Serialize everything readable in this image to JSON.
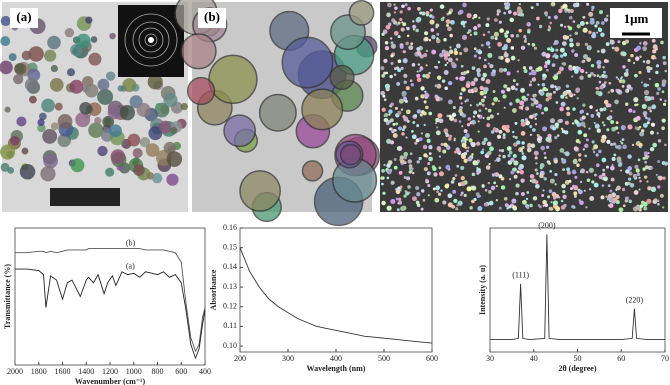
{
  "panels": [
    {
      "label": "(a)"
    },
    {
      "label": "(b)"
    },
    {
      "scale_label": "1μm"
    }
  ],
  "chart_data": [
    {
      "type": "line",
      "xlabel": "Wavenumber (cm⁻¹)",
      "ylabel": "Transmittance (%)",
      "xlim": [
        2000,
        400
      ],
      "xticks": [
        2000,
        1800,
        1600,
        1400,
        1200,
        1000,
        800,
        600,
        400
      ],
      "ylim": [
        0,
        100
      ],
      "x": [
        2000,
        1900,
        1800,
        1760,
        1740,
        1700,
        1650,
        1600,
        1560,
        1520,
        1480,
        1450,
        1400,
        1380,
        1340,
        1300,
        1250,
        1220,
        1180,
        1150,
        1100,
        1050,
        1000,
        950,
        900,
        850,
        800,
        750,
        700,
        650,
        600,
        560,
        520,
        480,
        450,
        420,
        400
      ],
      "series": [
        {
          "name": "(b)",
          "color": "#555",
          "values": [
            82,
            82,
            83,
            83,
            82,
            83,
            82,
            83,
            84,
            84,
            84,
            84,
            84,
            85,
            85,
            85,
            85,
            85,
            85,
            85,
            85,
            85,
            85,
            85,
            84,
            84,
            84,
            84,
            83,
            82,
            75,
            45,
            20,
            10,
            15,
            35,
            42
          ]
        },
        {
          "name": "(a)",
          "color": "#222",
          "values": [
            70,
            70,
            69,
            66,
            42,
            65,
            62,
            48,
            60,
            62,
            55,
            50,
            62,
            64,
            60,
            66,
            52,
            60,
            65,
            58,
            68,
            66,
            67,
            64,
            68,
            67,
            66,
            68,
            64,
            66,
            60,
            40,
            15,
            5,
            12,
            30,
            40
          ]
        }
      ]
    },
    {
      "type": "line",
      "xlabel": "Wavelength (nm)",
      "ylabel": "Absorbance",
      "xlim": [
        200,
        600
      ],
      "xticks": [
        200,
        300,
        400,
        500,
        600
      ],
      "ylim": [
        0.097,
        0.16
      ],
      "yticks": [
        {
          "value": 0.1,
          "label": "0.10"
        },
        0.11,
        0.12,
        0.13,
        0.14,
        0.15,
        {
          "value": 0.16,
          "label": "0.16"
        }
      ],
      "x": [
        200,
        220,
        240,
        260,
        280,
        300,
        320,
        340,
        360,
        380,
        400,
        420,
        440,
        460,
        480,
        500,
        520,
        540,
        560,
        580,
        600
      ],
      "series": [
        {
          "name": null,
          "color": "#333",
          "values": [
            0.15,
            0.138,
            0.13,
            0.124,
            0.12,
            0.117,
            0.114,
            0.112,
            0.11,
            0.109,
            0.108,
            0.107,
            0.106,
            0.105,
            0.1045,
            0.104,
            0.1035,
            0.103,
            0.1025,
            0.102,
            0.1015
          ]
        }
      ]
    },
    {
      "type": "line",
      "xlabel": "2θ (degree)",
      "ylabel": "Intensity (a. u)",
      "xlim": [
        30,
        70
      ],
      "xticks": [
        30,
        40,
        50,
        60,
        70
      ],
      "ylim": [
        0,
        100
      ],
      "x": [
        30,
        35,
        36.5,
        37,
        37.5,
        39,
        42.5,
        43,
        43.5,
        46,
        50,
        55,
        60,
        62.5,
        63,
        63.5,
        66,
        70
      ],
      "series": [
        {
          "name": null,
          "color": "#333",
          "values": [
            10,
            10,
            11,
            55,
            11,
            10,
            11,
            95,
            11,
            10,
            10,
            10,
            10,
            11,
            35,
            11,
            10,
            10
          ]
        }
      ],
      "annotations": [
        {
          "text": "(111)",
          "x": 37,
          "y": 55
        },
        {
          "text": "(200)",
          "x": 43,
          "y": 95
        },
        {
          "text": "(220)",
          "x": 63,
          "y": 35
        }
      ]
    }
  ]
}
